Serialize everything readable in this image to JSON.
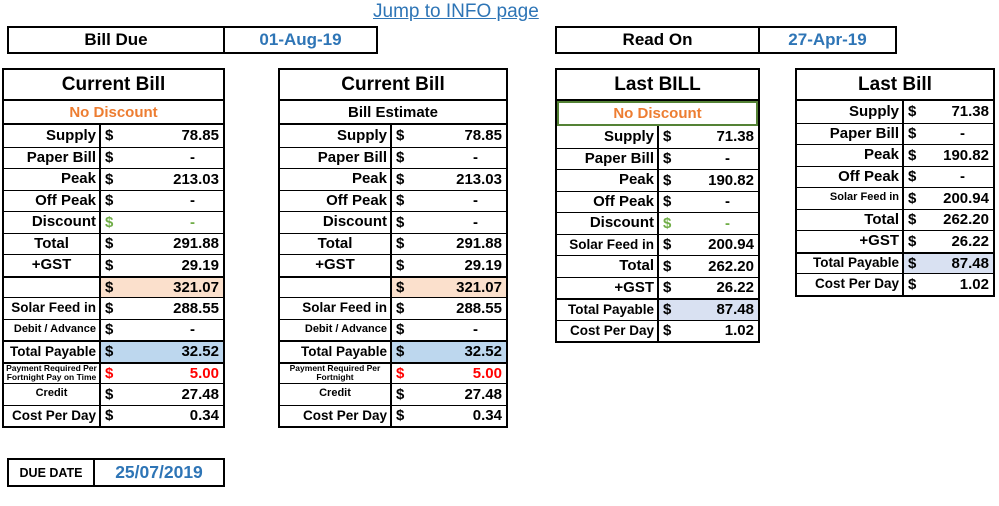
{
  "page": {
    "link_label": "Jump to INFO page"
  },
  "top_bar": {
    "bill_due": {
      "label": "Bill Due",
      "value": "01-Aug-19"
    },
    "read_on": {
      "label": "Read On",
      "value": "27-Apr-19"
    }
  },
  "due_date": {
    "label": "DUE DATE",
    "value": "25/07/2019"
  },
  "colors": {
    "accent_orange": "#ED7D31",
    "accent_blue": "#2E75B6",
    "negative_red": "#FF0000",
    "discount_green": "#70AD47",
    "highlight_peach": "#FBE0CC",
    "highlight_blue": "#BDD7EE",
    "highlight_lavender": "#D9E1F2",
    "subtitle_border_green": "#548235"
  },
  "tables": [
    {
      "title": "Current Bill",
      "subtitle": "No Discount",
      "subtitle_color": "orange",
      "rows": [
        {
          "label": "Supply",
          "cur": "$",
          "value": "78.85"
        },
        {
          "label": "Paper Bill",
          "cur": "$",
          "value": "-"
        },
        {
          "label": "Peak",
          "cur": "$",
          "value": "213.03"
        },
        {
          "label": "Off Peak",
          "cur": "$",
          "value": "-"
        },
        {
          "label": "Discount",
          "cur": "$",
          "value": "-",
          "color": "green"
        },
        {
          "label": "Total",
          "cur": "$",
          "value": "291.88"
        },
        {
          "label": "+GST",
          "cur": "$",
          "value": "29.19"
        },
        {
          "label": "",
          "cur": "$",
          "value": "321.07",
          "bg": "peach"
        },
        {
          "label": "Solar Feed in",
          "cur": "$",
          "value": "288.55",
          "size": "md"
        },
        {
          "label": "Debit / Advance",
          "cur": "$",
          "value": "-",
          "size": "sm"
        },
        {
          "label": "Total Payable",
          "cur": "$",
          "value": "32.52",
          "bg": "blue",
          "size": "md"
        },
        {
          "label": "Payment Required Per Fortnight Pay on Time",
          "cur": "$",
          "value": "5.00",
          "color": "red",
          "size": "xs"
        },
        {
          "label": "Credit",
          "cur": "$",
          "value": "27.48",
          "size": "sm"
        },
        {
          "label": "Cost Per Day",
          "cur": "$",
          "value": "0.34",
          "size": "md"
        }
      ]
    },
    {
      "title": "Current Bill",
      "subtitle": "Bill Estimate",
      "rows": [
        {
          "label": "Supply",
          "cur": "$",
          "value": "78.85"
        },
        {
          "label": "Paper Bill",
          "cur": "$",
          "value": "-"
        },
        {
          "label": "Peak",
          "cur": "$",
          "value": "213.03"
        },
        {
          "label": "Off Peak",
          "cur": "$",
          "value": "-"
        },
        {
          "label": "Discount",
          "cur": "$",
          "value": "-"
        },
        {
          "label": "Total",
          "cur": "$",
          "value": "291.88"
        },
        {
          "label": "+GST",
          "cur": "$",
          "value": "29.19"
        },
        {
          "label": "",
          "cur": "$",
          "value": "321.07",
          "bg": "peach"
        },
        {
          "label": "Solar Feed in",
          "cur": "$",
          "value": "288.55",
          "size": "md"
        },
        {
          "label": "Debit / Advance",
          "cur": "$",
          "value": "-",
          "size": "sm"
        },
        {
          "label": "Total Payable",
          "cur": "$",
          "value": "32.52",
          "bg": "blue",
          "size": "md"
        },
        {
          "label": "Payment Required Per Fortnight",
          "cur": "$",
          "value": "5.00",
          "color": "red",
          "size": "xs"
        },
        {
          "label": "Credit",
          "cur": "$",
          "value": "27.48",
          "size": "sm"
        },
        {
          "label": "Cost Per Day",
          "cur": "$",
          "value": "0.34",
          "size": "md"
        }
      ]
    },
    {
      "title": "Last BILL",
      "subtitle": "No Discount",
      "subtitle_color": "orange",
      "subtitle_border": true,
      "rows": [
        {
          "label": "Supply",
          "cur": "$",
          "value": "71.38"
        },
        {
          "label": "Paper Bill",
          "cur": "$",
          "value": "-"
        },
        {
          "label": "Peak",
          "cur": "$",
          "value": "190.82"
        },
        {
          "label": "Off Peak",
          "cur": "$",
          "value": "-"
        },
        {
          "label": "Discount",
          "cur": "$",
          "value": "-",
          "color": "green"
        },
        {
          "label": "Solar Feed in",
          "cur": "$",
          "value": "200.94",
          "size": "md"
        },
        {
          "label": "Total",
          "cur": "$",
          "value": "262.20"
        },
        {
          "label": "+GST",
          "cur": "$",
          "value": "26.22"
        },
        {
          "label": "Total Payable",
          "cur": "$",
          "value": "87.48",
          "bg": "lavender",
          "size": "md"
        },
        {
          "label": "Cost Per Day",
          "cur": "$",
          "value": "1.02",
          "size": "md"
        }
      ]
    },
    {
      "title": "Last Bill",
      "rows": [
        {
          "label": "Supply",
          "cur": "$",
          "value": "71.38"
        },
        {
          "label": "Paper Bill",
          "cur": "$",
          "value": "-"
        },
        {
          "label": "Peak",
          "cur": "$",
          "value": "190.82"
        },
        {
          "label": "Off Peak",
          "cur": "$",
          "value": "-"
        },
        {
          "label": "Solar Feed in",
          "cur": "$",
          "value": "200.94",
          "size": "sm"
        },
        {
          "label": "Total",
          "cur": "$",
          "value": "262.20"
        },
        {
          "label": "+GST",
          "cur": "$",
          "value": "26.22"
        },
        {
          "label": "Total Payable",
          "cur": "$",
          "value": "87.48",
          "bg": "lavender",
          "size": "md"
        },
        {
          "label": "Cost Per Day",
          "cur": "$",
          "value": "1.02",
          "size": "md"
        }
      ]
    }
  ]
}
